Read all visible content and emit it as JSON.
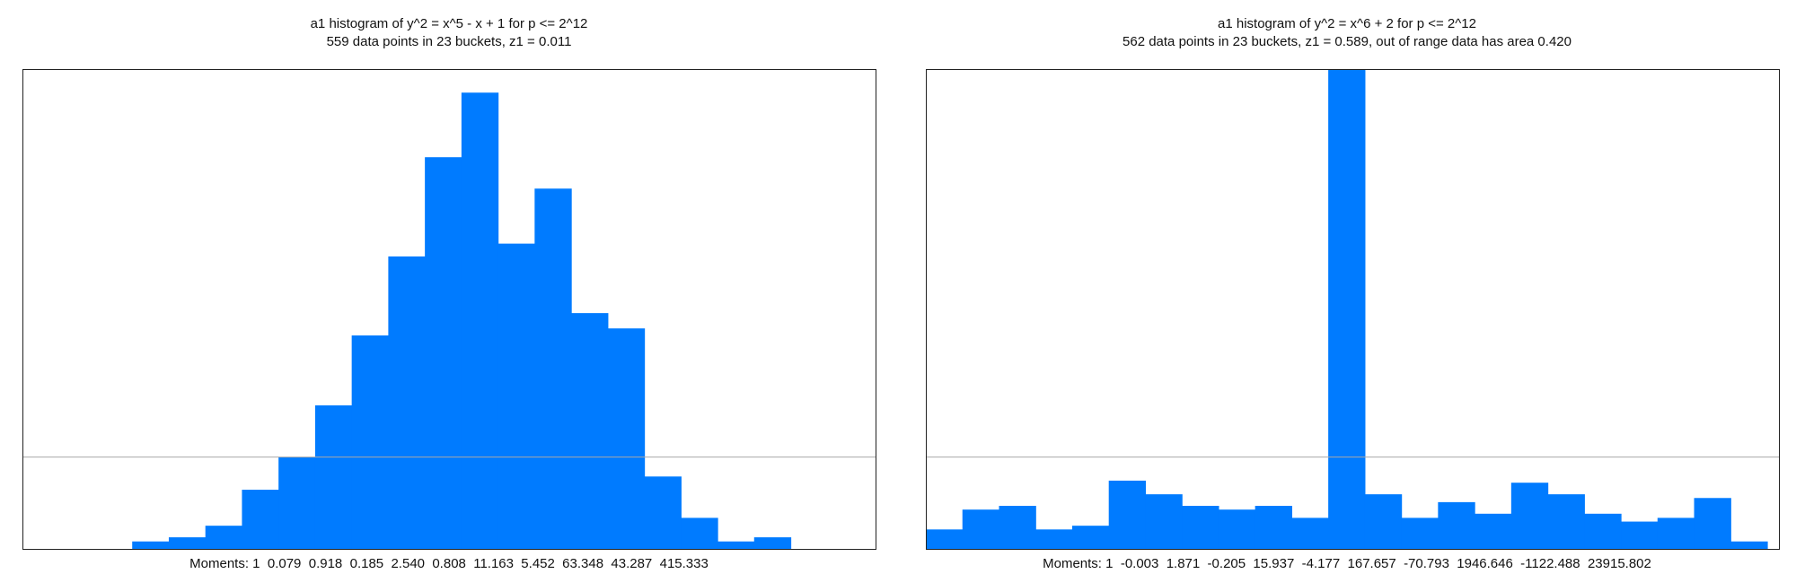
{
  "chart_data": [
    {
      "type": "bar",
      "title": "a1 histogram of y^2 = x^5 - x + 1 for p <= 2^12",
      "subtitle": "559 data points in 23 buckets, z1 = 0.011",
      "moments": "Moments: 1  0.079  0.918  0.185  2.540  0.808  11.163  5.452  63.348  43.287  415.333",
      "buckets": 23,
      "values": [
        0,
        0,
        0,
        0.018,
        0.028,
        0.056,
        0.143,
        0.222,
        0.347,
        0.516,
        0.707,
        0.947,
        1.103,
        0.738,
        0.871,
        0.57,
        0.533,
        0.175,
        0.075,
        0.018,
        0.028,
        0,
        0
      ],
      "reference_line": 0.222,
      "ylim": [
        0,
        1.16
      ],
      "color": "#007bff",
      "grid": false
    },
    {
      "type": "bar",
      "title": "a1 histogram of y^2 = x^6 + 2 for p <= 2^12",
      "subtitle": "562 data points in 23 buckets, z1 = 0.589, out of range data has area 0.420",
      "moments": "Moments: 1  -0.003  1.871  -0.205  15.937  -4.177  167.657  -70.793  1946.646  -1122.488  23915.802",
      "buckets": 23,
      "values": [
        0.047,
        0.095,
        0.104,
        0.047,
        0.056,
        0.165,
        0.132,
        0.104,
        0.095,
        0.104,
        0.075,
        1.17,
        0.132,
        0.075,
        0.113,
        0.085,
        0.16,
        0.132,
        0.085,
        0.066,
        0.075,
        0.123,
        0.018
      ],
      "reference_line": 0.222,
      "ylim": [
        0,
        1.16
      ],
      "color": "#007bff",
      "grid": false
    }
  ]
}
